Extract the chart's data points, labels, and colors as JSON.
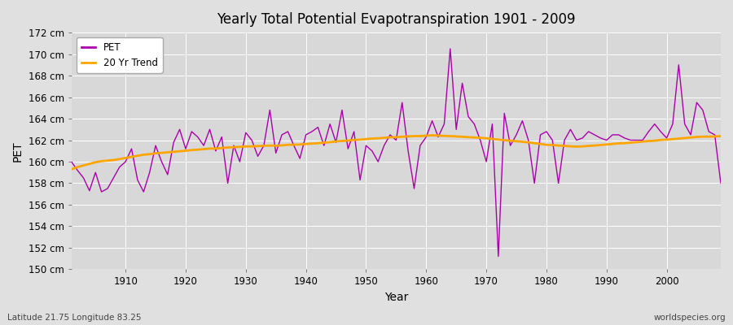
{
  "title": "Yearly Total Potential Evapotranspiration 1901 - 2009",
  "xlabel": "Year",
  "ylabel": "PET",
  "legend_labels": [
    "PET",
    "20 Yr Trend"
  ],
  "pet_color": "#AA00AA",
  "trend_color": "#FFA500",
  "bg_color": "#E0E0E0",
  "plot_bg_color": "#D8D8D8",
  "ylim": [
    150,
    172
  ],
  "xlim": [
    1901,
    2009
  ],
  "x_ticks": [
    1910,
    1920,
    1930,
    1940,
    1950,
    1960,
    1970,
    1980,
    1990,
    2000
  ],
  "footer_left": "Latitude 21.75 Longitude 83.25",
  "footer_right": "worldspecies.org",
  "years": [
    1901,
    1902,
    1903,
    1904,
    1905,
    1906,
    1907,
    1908,
    1909,
    1910,
    1911,
    1912,
    1913,
    1914,
    1915,
    1916,
    1917,
    1918,
    1919,
    1920,
    1921,
    1922,
    1923,
    1924,
    1925,
    1926,
    1927,
    1928,
    1929,
    1930,
    1931,
    1932,
    1933,
    1934,
    1935,
    1936,
    1937,
    1938,
    1939,
    1940,
    1941,
    1942,
    1943,
    1944,
    1945,
    1946,
    1947,
    1948,
    1949,
    1950,
    1951,
    1952,
    1953,
    1954,
    1955,
    1956,
    1957,
    1958,
    1959,
    1960,
    1961,
    1962,
    1963,
    1964,
    1965,
    1966,
    1967,
    1968,
    1969,
    1970,
    1971,
    1972,
    1973,
    1974,
    1975,
    1976,
    1977,
    1978,
    1979,
    1980,
    1981,
    1982,
    1983,
    1984,
    1985,
    1986,
    1987,
    1988,
    1989,
    1990,
    1991,
    1992,
    1993,
    1994,
    1995,
    1996,
    1997,
    1998,
    1999,
    2000,
    2001,
    2002,
    2003,
    2004,
    2005,
    2006,
    2007,
    2008,
    2009
  ],
  "pet_values": [
    160.0,
    159.2,
    158.5,
    157.3,
    159.0,
    157.2,
    157.5,
    158.5,
    159.5,
    160.0,
    161.2,
    158.3,
    157.2,
    159.0,
    161.5,
    160.0,
    158.8,
    161.8,
    163.0,
    161.2,
    162.8,
    162.3,
    161.5,
    163.0,
    161.0,
    162.3,
    158.0,
    161.5,
    160.0,
    162.7,
    162.0,
    160.5,
    161.5,
    164.8,
    160.8,
    162.5,
    162.8,
    161.5,
    160.3,
    162.5,
    162.8,
    163.2,
    161.5,
    163.5,
    161.8,
    164.8,
    161.2,
    162.8,
    158.3,
    161.5,
    161.0,
    160.0,
    161.5,
    162.5,
    162.0,
    165.5,
    161.0,
    157.5,
    161.5,
    162.3,
    163.8,
    162.3,
    163.5,
    170.5,
    163.0,
    167.3,
    164.2,
    163.5,
    162.0,
    160.0,
    163.5,
    151.2,
    164.5,
    161.5,
    162.5,
    163.8,
    162.0,
    158.0,
    162.5,
    162.8,
    162.0,
    158.0,
    162.0,
    163.0,
    162.0,
    162.2,
    162.8,
    162.5,
    162.2,
    162.0,
    162.5,
    162.5,
    162.2,
    162.0,
    162.0,
    162.0,
    162.8,
    163.5,
    162.8,
    162.2,
    163.5,
    169.0,
    163.5,
    162.5,
    165.5,
    164.8,
    162.8,
    162.5,
    158.0
  ],
  "trend_values": [
    159.3,
    159.5,
    159.65,
    159.8,
    159.95,
    160.05,
    160.1,
    160.15,
    160.25,
    160.35,
    160.45,
    160.55,
    160.65,
    160.7,
    160.78,
    160.82,
    160.87,
    160.92,
    160.97,
    161.02,
    161.08,
    161.12,
    161.17,
    161.22,
    161.22,
    161.27,
    161.32,
    161.35,
    161.38,
    161.42,
    161.42,
    161.45,
    161.48,
    161.5,
    161.48,
    161.52,
    161.57,
    161.58,
    161.6,
    161.65,
    161.68,
    161.72,
    161.77,
    161.82,
    161.88,
    161.93,
    161.97,
    162.02,
    162.05,
    162.1,
    162.15,
    162.18,
    162.22,
    162.27,
    162.28,
    162.32,
    162.35,
    162.38,
    162.38,
    162.42,
    162.45,
    162.42,
    162.4,
    162.38,
    162.35,
    162.32,
    162.28,
    162.25,
    162.22,
    162.18,
    162.12,
    162.05,
    162.0,
    161.95,
    161.9,
    161.85,
    161.8,
    161.72,
    161.65,
    161.57,
    161.55,
    161.5,
    161.47,
    161.43,
    161.4,
    161.42,
    161.47,
    161.5,
    161.55,
    161.6,
    161.65,
    161.7,
    161.72,
    161.77,
    161.82,
    161.87,
    161.92,
    161.95,
    162.02,
    162.05,
    162.1,
    162.15,
    162.2,
    162.25,
    162.3,
    162.33,
    162.33,
    162.35,
    162.38
  ]
}
